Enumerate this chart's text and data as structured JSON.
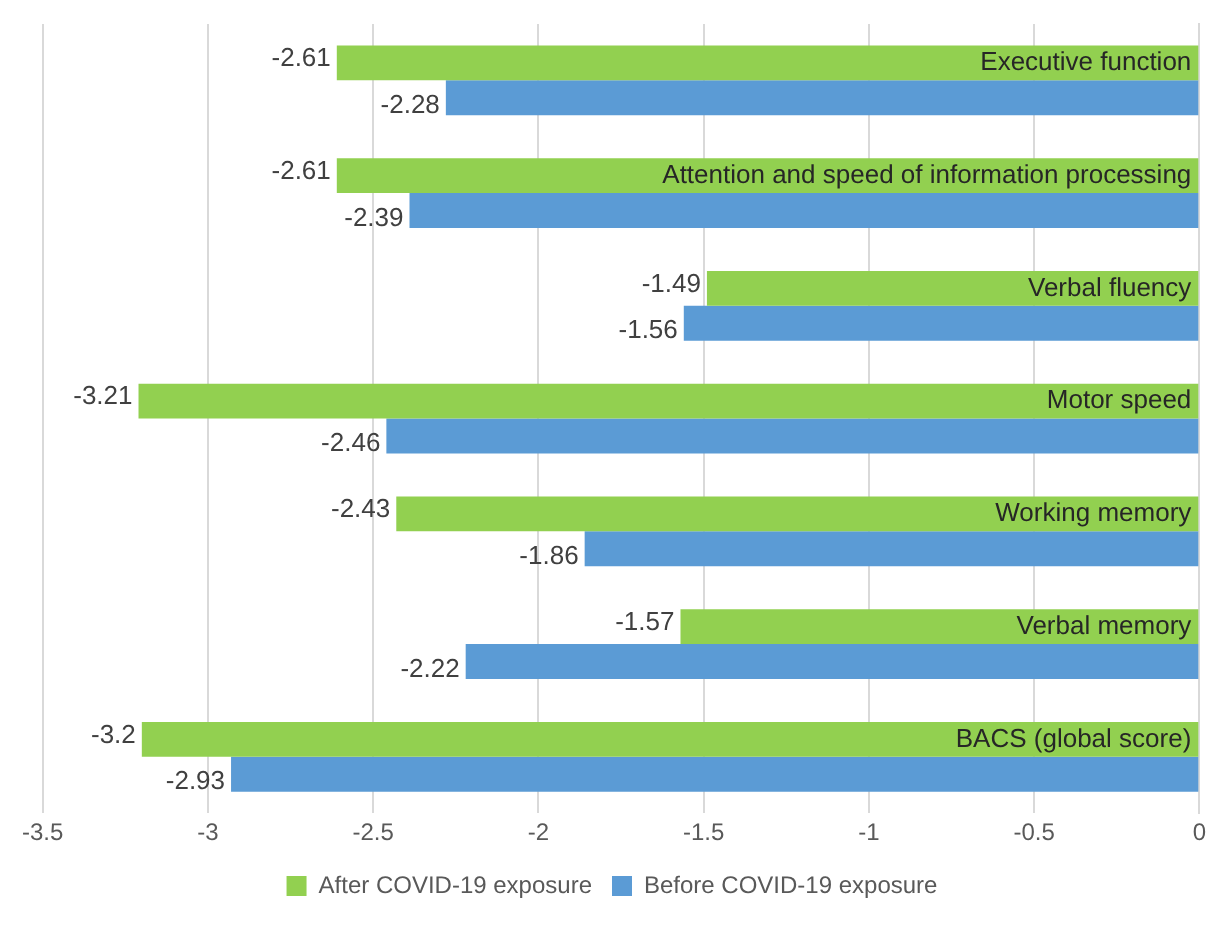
{
  "chart_data": {
    "type": "bar",
    "orientation": "horizontal",
    "categories": [
      "Executive function",
      "Attention and speed of information processing",
      "Verbal fluency",
      "Motor speed",
      "Working memory",
      "Verbal memory",
      "BACS (global score)"
    ],
    "series": [
      {
        "name": "After COVID-19 exposure",
        "color": "#92d050",
        "values": [
          -2.61,
          -2.61,
          -1.49,
          -3.21,
          -2.43,
          -1.57,
          -3.2
        ]
      },
      {
        "name": "Before COVID-19 exposure",
        "color": "#5b9bd5",
        "values": [
          -2.28,
          -2.39,
          -1.56,
          -2.46,
          -1.86,
          -2.22,
          -2.93
        ]
      }
    ],
    "xlim": [
      -3.5,
      0
    ],
    "xticks": [
      -3.5,
      -3,
      -2.5,
      -2,
      -1.5,
      -1,
      -0.5,
      0
    ],
    "grid": "x",
    "legend": "bottom",
    "data_labels": true
  }
}
